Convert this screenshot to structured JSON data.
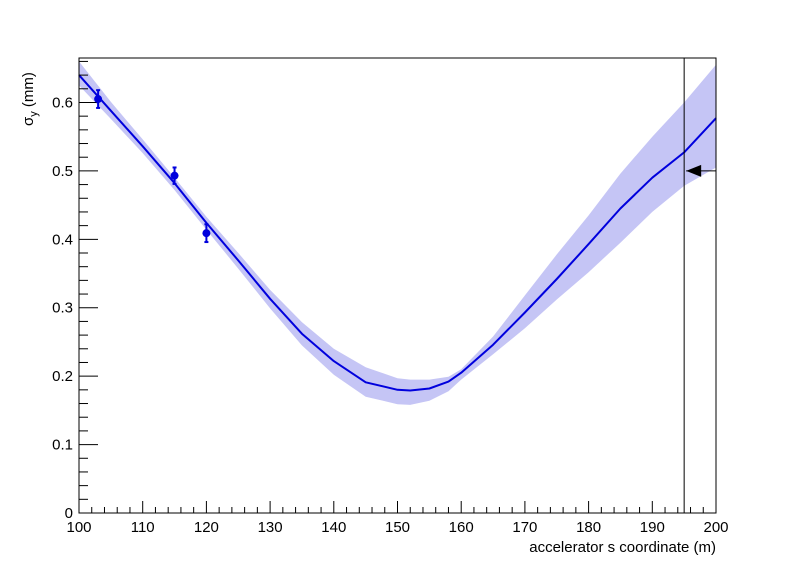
{
  "chart_data": {
    "type": "line",
    "title": "",
    "xlabel": "accelerator s coordinate (m)",
    "ylabel": {
      "symbol": "σ",
      "subscript": "y",
      "unit": " (mm)"
    },
    "xlim": [
      100,
      200
    ],
    "ylim": [
      0,
      0.665
    ],
    "x_ticks": [
      100,
      110,
      120,
      130,
      140,
      150,
      160,
      170,
      180,
      190,
      200
    ],
    "x_tick_labels": [
      "100",
      "110",
      "120",
      "130",
      "140",
      "150",
      "160",
      "170",
      "180",
      "190",
      "200"
    ],
    "y_ticks": [
      0,
      0.1,
      0.2,
      0.3,
      0.4,
      0.5,
      0.6
    ],
    "y_tick_labels": [
      "0",
      "0.1",
      "0.2",
      "0.3",
      "0.4",
      "0.5",
      "0.6"
    ],
    "grid": false,
    "legend": "none",
    "colors": {
      "line": "#0000dd",
      "band": "#c5c5f5",
      "points": "#0000dd",
      "marker": "#000000"
    },
    "fit_curve": {
      "x": [
        100,
        105,
        110,
        115,
        120,
        125,
        130,
        135,
        140,
        145,
        150,
        152,
        155,
        158,
        160,
        165,
        170,
        175,
        180,
        185,
        190,
        195,
        200
      ],
      "y": [
        0.64,
        0.588,
        0.536,
        0.482,
        0.424,
        0.369,
        0.313,
        0.262,
        0.222,
        0.191,
        0.18,
        0.179,
        0.182,
        0.192,
        0.205,
        0.246,
        0.293,
        0.342,
        0.393,
        0.445,
        0.49,
        0.527,
        0.577
      ],
      "band_low": [
        0.625,
        0.576,
        0.526,
        0.472,
        0.414,
        0.357,
        0.299,
        0.245,
        0.202,
        0.17,
        0.159,
        0.158,
        0.164,
        0.178,
        0.195,
        0.232,
        0.27,
        0.312,
        0.352,
        0.395,
        0.44,
        0.478,
        0.505
      ],
      "band_high": [
        0.66,
        0.601,
        0.546,
        0.49,
        0.433,
        0.38,
        0.326,
        0.279,
        0.24,
        0.213,
        0.197,
        0.195,
        0.195,
        0.199,
        0.21,
        0.258,
        0.318,
        0.378,
        0.435,
        0.496,
        0.55,
        0.6,
        0.655
      ]
    },
    "measurements": [
      {
        "x": 103,
        "y": 0.605,
        "err": 0.013
      },
      {
        "x": 115,
        "y": 0.493,
        "err": 0.012
      },
      {
        "x": 120,
        "y": 0.409,
        "err": 0.013
      }
    ],
    "vertical_line_x": 195,
    "target_marker": {
      "x": 195,
      "y": 0.5,
      "direction": "left"
    }
  }
}
